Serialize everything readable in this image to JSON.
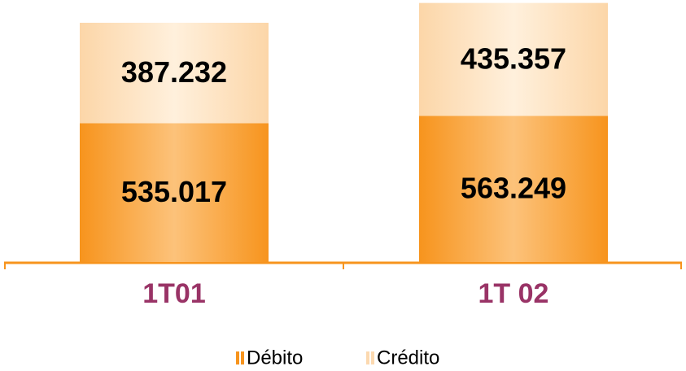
{
  "chart_data": {
    "type": "stacked_bar",
    "categories": [
      "1T01",
      "1T 02"
    ],
    "series": [
      {
        "name": "Débito",
        "color": "#f7941d",
        "values": [
          535017,
          563249
        ],
        "value_labels": [
          "535.017",
          "563.249"
        ]
      },
      {
        "name": "Crédito",
        "color": "#fcd9b0",
        "values": [
          387232,
          435357
        ],
        "value_labels": [
          "387.232",
          "435.357"
        ]
      }
    ],
    "ylim": [
      0,
      1010000
    ]
  }
}
